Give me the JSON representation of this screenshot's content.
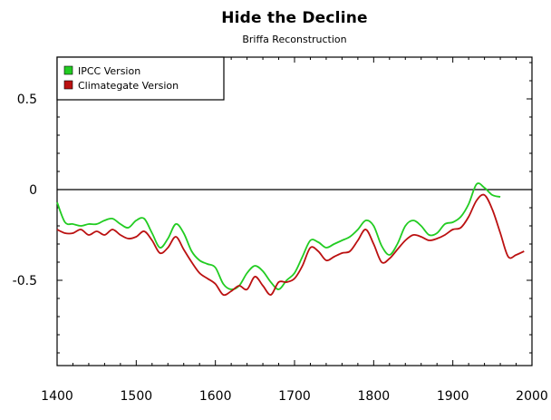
{
  "chart_data": {
    "type": "line",
    "title": "Hide the Decline",
    "subtitle": "Briffa Reconstruction",
    "xlabel": "",
    "ylabel": "",
    "xlim": [
      1400,
      2000
    ],
    "ylim": [
      -0.97,
      0.73
    ],
    "x_ticks": [
      1400,
      1500,
      1600,
      1700,
      1800,
      1900,
      2000
    ],
    "y_ticks": [
      0.5,
      0,
      -0.5
    ],
    "y_tick_labels": [
      "0.5",
      "0",
      "-0.5"
    ],
    "grid": false,
    "zero_line": true,
    "legend_position": "top-left",
    "series": [
      {
        "name": "IPCC Version",
        "color": "#22cc22",
        "x": [
          1400,
          1410,
          1420,
          1430,
          1440,
          1450,
          1460,
          1470,
          1480,
          1490,
          1500,
          1510,
          1520,
          1530,
          1540,
          1550,
          1560,
          1570,
          1580,
          1590,
          1600,
          1610,
          1620,
          1630,
          1640,
          1650,
          1660,
          1670,
          1680,
          1690,
          1700,
          1710,
          1720,
          1730,
          1740,
          1750,
          1760,
          1770,
          1780,
          1790,
          1800,
          1810,
          1820,
          1830,
          1840,
          1850,
          1860,
          1870,
          1880,
          1890,
          1900,
          1910,
          1920,
          1930,
          1940,
          1950,
          1960
        ],
        "y": [
          -0.07,
          -0.18,
          -0.19,
          -0.2,
          -0.19,
          -0.19,
          -0.17,
          -0.16,
          -0.19,
          -0.21,
          -0.17,
          -0.16,
          -0.24,
          -0.32,
          -0.27,
          -0.19,
          -0.24,
          -0.34,
          -0.39,
          -0.41,
          -0.43,
          -0.52,
          -0.55,
          -0.53,
          -0.46,
          -0.42,
          -0.45,
          -0.51,
          -0.55,
          -0.5,
          -0.46,
          -0.37,
          -0.28,
          -0.29,
          -0.32,
          -0.3,
          -0.28,
          -0.26,
          -0.22,
          -0.17,
          -0.2,
          -0.31,
          -0.36,
          -0.3,
          -0.2,
          -0.17,
          -0.2,
          -0.25,
          -0.24,
          -0.19,
          -0.18,
          -0.15,
          -0.08,
          0.03,
          0.01,
          -0.03,
          -0.04
        ]
      },
      {
        "name": "Climategate Version",
        "color": "#bb1111",
        "x": [
          1400,
          1410,
          1420,
          1430,
          1440,
          1450,
          1460,
          1470,
          1480,
          1490,
          1500,
          1510,
          1520,
          1530,
          1540,
          1550,
          1560,
          1570,
          1580,
          1590,
          1600,
          1610,
          1620,
          1630,
          1640,
          1650,
          1660,
          1670,
          1680,
          1690,
          1700,
          1710,
          1720,
          1730,
          1740,
          1750,
          1760,
          1770,
          1780,
          1790,
          1800,
          1810,
          1820,
          1830,
          1840,
          1850,
          1860,
          1870,
          1880,
          1890,
          1900,
          1910,
          1920,
          1930,
          1940,
          1950,
          1960,
          1970,
          1980,
          1990
        ],
        "y": [
          -0.22,
          -0.24,
          -0.24,
          -0.22,
          -0.25,
          -0.23,
          -0.25,
          -0.22,
          -0.25,
          -0.27,
          -0.26,
          -0.23,
          -0.28,
          -0.35,
          -0.32,
          -0.26,
          -0.33,
          -0.4,
          -0.46,
          -0.49,
          -0.52,
          -0.58,
          -0.56,
          -0.53,
          -0.55,
          -0.48,
          -0.53,
          -0.58,
          -0.51,
          -0.51,
          -0.49,
          -0.42,
          -0.32,
          -0.34,
          -0.39,
          -0.37,
          -0.35,
          -0.34,
          -0.28,
          -0.22,
          -0.3,
          -0.4,
          -0.38,
          -0.33,
          -0.28,
          -0.25,
          -0.26,
          -0.28,
          -0.27,
          -0.25,
          -0.22,
          -0.21,
          -0.15,
          -0.06,
          -0.03,
          -0.11,
          -0.24,
          -0.37,
          -0.36,
          -0.34
        ]
      }
    ]
  }
}
